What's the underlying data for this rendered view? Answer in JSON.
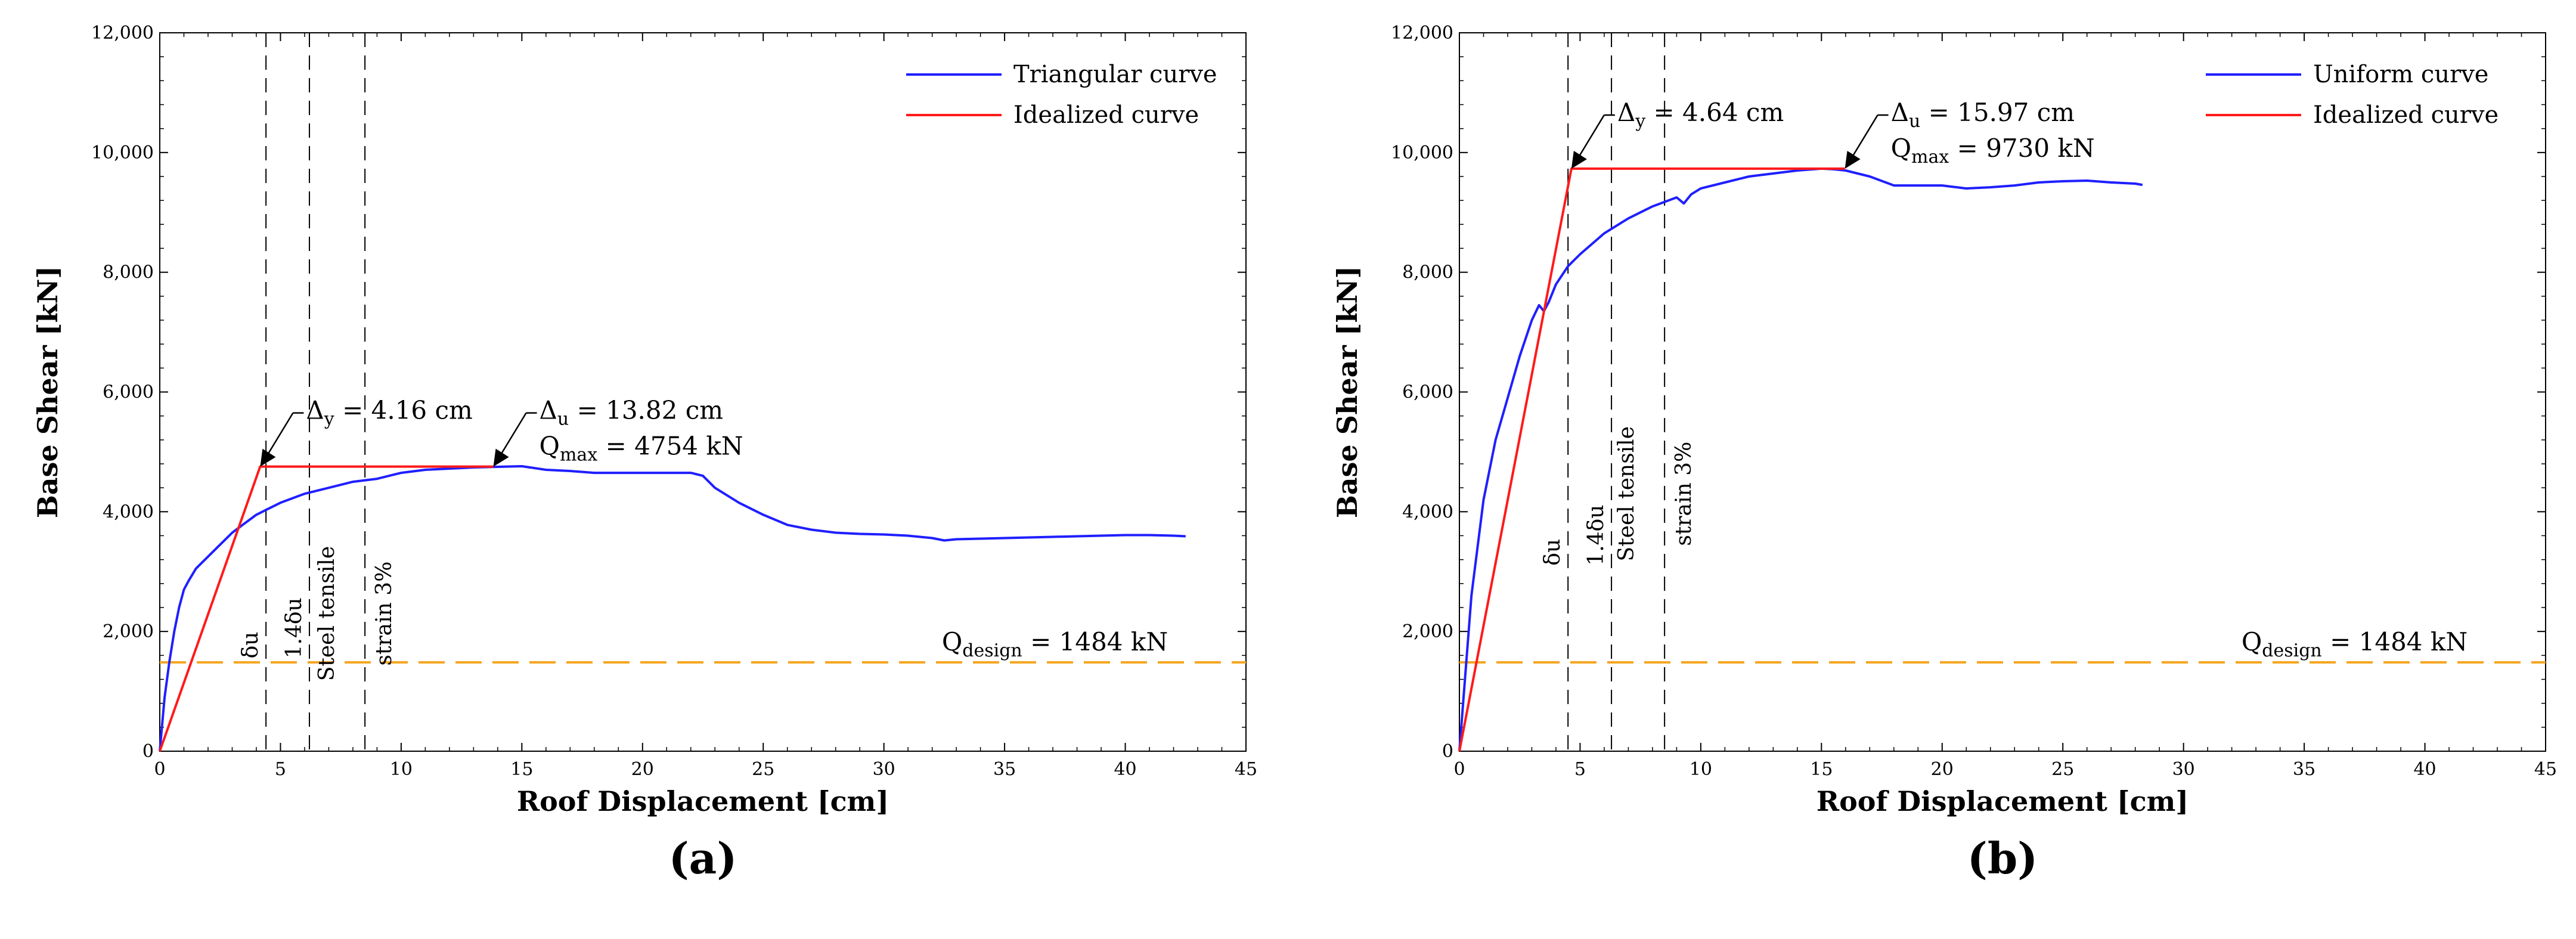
{
  "chart_data": [
    {
      "type": "line",
      "panel_label": "(a)",
      "xlabel": "Roof Displacement [cm]",
      "ylabel": "Base Shear [kN]",
      "xlim": [
        0,
        45
      ],
      "ylim": [
        0,
        12000
      ],
      "xticks": [
        0,
        5,
        10,
        15,
        20,
        25,
        30,
        35,
        40,
        45
      ],
      "yticks": [
        0,
        2000,
        4000,
        6000,
        8000,
        10000,
        12000
      ],
      "ytick_labels": [
        "0",
        "2,000",
        "4,000",
        "6,000",
        "8,000",
        "10,000",
        "12,000"
      ],
      "grid": false,
      "legend_position": "top-right",
      "series": [
        {
          "name": "Triangular curve",
          "color": "#1f1fff",
          "x": [
            0,
            0.2,
            0.4,
            0.6,
            0.8,
            1.0,
            1.2,
            1.5,
            2.0,
            2.5,
            3.0,
            3.5,
            4.0,
            4.5,
            5.0,
            6.0,
            7.0,
            8.0,
            9.0,
            10.0,
            11.0,
            12.0,
            13.0,
            14.0,
            15.0,
            16.0,
            17.0,
            18.0,
            19.0,
            20.0,
            21.0,
            22.0,
            22.5,
            23.0,
            24.0,
            25.0,
            26.0,
            27.0,
            28.0,
            29.0,
            30.0,
            31.0,
            32.0,
            32.5,
            33.0,
            34.0,
            35.0,
            36.0,
            37.0,
            38.0,
            39.0,
            40.0,
            41.0,
            42.0,
            42.5
          ],
          "y": [
            0,
            900,
            1500,
            2000,
            2400,
            2700,
            2850,
            3050,
            3250,
            3450,
            3650,
            3800,
            3950,
            4050,
            4150,
            4300,
            4400,
            4500,
            4550,
            4650,
            4700,
            4720,
            4740,
            4750,
            4760,
            4700,
            4680,
            4650,
            4650,
            4650,
            4650,
            4650,
            4600,
            4400,
            4150,
            3950,
            3780,
            3700,
            3650,
            3630,
            3620,
            3600,
            3560,
            3520,
            3540,
            3550,
            3560,
            3570,
            3580,
            3590,
            3600,
            3610,
            3610,
            3600,
            3590
          ]
        },
        {
          "name": "Idealized curve",
          "color": "#ff1a1a",
          "x": [
            0,
            4.16,
            13.82
          ],
          "y": [
            0,
            4754,
            4754
          ]
        }
      ],
      "reference_lines": [
        {
          "orientation": "horizontal",
          "y": 1484,
          "color": "#f5a623",
          "dash": "long",
          "label": "Q",
          "label_sub": "design",
          "label_rest": " = 1484 kN"
        },
        {
          "orientation": "vertical",
          "x": 4.4,
          "label": "δu"
        },
        {
          "orientation": "vertical",
          "x": 6.2,
          "label": "1.4δu"
        },
        {
          "orientation": "vertical",
          "x": 8.5,
          "label": "Steel tensile",
          "label2": "strain 3%"
        }
      ],
      "annotations": [
        {
          "text_main": "Δ",
          "text_sub": "y",
          "text_rest": " = 4.16 cm",
          "points_to": [
            4.16,
            4754
          ]
        },
        {
          "text_main": "Δ",
          "text_sub": "u",
          "text_rest": " = 13.82 cm",
          "line2_main": "Q",
          "line2_sub": "max",
          "line2_rest": " = 4754 kN",
          "points_to": [
            13.82,
            4754
          ]
        }
      ]
    },
    {
      "type": "line",
      "panel_label": "(b)",
      "xlabel": "Roof Displacement [cm]",
      "ylabel": "Base Shear [kN]",
      "xlim": [
        0,
        45
      ],
      "ylim": [
        0,
        12000
      ],
      "xticks": [
        0,
        5,
        10,
        15,
        20,
        25,
        30,
        35,
        40,
        45
      ],
      "yticks": [
        0,
        2000,
        4000,
        6000,
        8000,
        10000,
        12000
      ],
      "ytick_labels": [
        "0",
        "2,000",
        "4,000",
        "6,000",
        "8,000",
        "10,000",
        "12,000"
      ],
      "grid": false,
      "legend_position": "top-right",
      "series": [
        {
          "name": "Uniform curve",
          "color": "#1f1fff",
          "x": [
            0,
            0.5,
            1.0,
            1.5,
            2.0,
            2.5,
            3.0,
            3.3,
            3.5,
            3.7,
            4.0,
            4.5,
            5.0,
            6.0,
            7.0,
            8.0,
            9.0,
            9.3,
            9.6,
            10.0,
            11.0,
            12.0,
            13.0,
            14.0,
            15.0,
            15.5,
            16.0,
            17.0,
            18.0,
            19.0,
            20.0,
            21.0,
            22.0,
            23.0,
            24.0,
            25.0,
            26.0,
            27.0,
            28.0,
            28.3
          ],
          "y": [
            0,
            2600,
            4200,
            5200,
            5900,
            6600,
            7200,
            7450,
            7350,
            7500,
            7800,
            8100,
            8300,
            8650,
            8900,
            9100,
            9250,
            9150,
            9300,
            9400,
            9500,
            9600,
            9650,
            9700,
            9730,
            9720,
            9700,
            9600,
            9450,
            9450,
            9450,
            9400,
            9420,
            9450,
            9500,
            9520,
            9530,
            9500,
            9480,
            9460
          ]
        },
        {
          "name": "Idealized curve",
          "color": "#ff1a1a",
          "x": [
            0,
            4.64,
            15.97
          ],
          "y": [
            0,
            9730,
            9730
          ]
        }
      ],
      "reference_lines": [
        {
          "orientation": "horizontal",
          "y": 1484,
          "color": "#f5a623",
          "dash": "long",
          "label": "Q",
          "label_sub": "design",
          "label_rest": " = 1484 kN"
        },
        {
          "orientation": "vertical",
          "x": 4.5,
          "label": "δu"
        },
        {
          "orientation": "vertical",
          "x": 6.3,
          "label": "1.4δu"
        },
        {
          "orientation": "vertical",
          "x": 8.5,
          "label": "Steel tensile",
          "label2": "strain 3%"
        }
      ],
      "annotations": [
        {
          "text_main": "Δ",
          "text_sub": "y",
          "text_rest": " = 4.64 cm",
          "points_to": [
            4.64,
            9730
          ]
        },
        {
          "text_main": "Δ",
          "text_sub": "u",
          "text_rest": " = 15.97 cm",
          "line2_main": "Q",
          "line2_sub": "max",
          "line2_rest": " = 9730 kN",
          "points_to": [
            15.97,
            9730
          ]
        }
      ]
    }
  ]
}
